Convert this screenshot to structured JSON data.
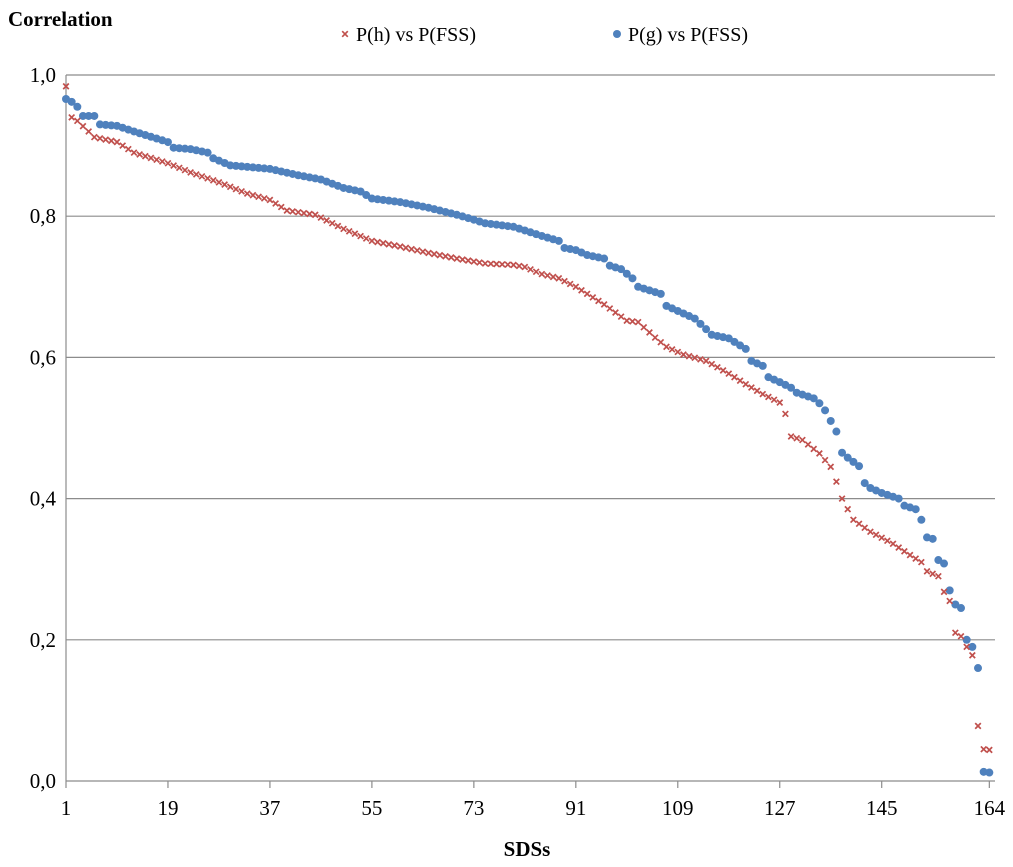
{
  "chart_data": {
    "type": "scatter",
    "ylabel": "Correlation",
    "xlabel": "SDSs",
    "xlim": [
      1,
      165
    ],
    "ylim": [
      0,
      1
    ],
    "x_ticks": [
      1,
      19,
      37,
      55,
      73,
      91,
      109,
      127,
      145,
      164
    ],
    "x_tick_labels": [
      "1",
      "19",
      "37",
      "55",
      "73",
      "91",
      "109",
      "127",
      "145",
      "164"
    ],
    "y_ticks": [
      0,
      0.2,
      0.4,
      0.6,
      0.8,
      1.0
    ],
    "y_tick_labels": [
      "0,0",
      "0,2",
      "0,4",
      "0,6",
      "0,8",
      "1,0"
    ],
    "grid": "horizontal",
    "legend_position": "top-center",
    "series": [
      {
        "name": "P(h) vs P(FSS)",
        "marker": "x",
        "color": "#c0504d",
        "anchors": [
          [
            1,
            0.984
          ],
          [
            2,
            0.94
          ],
          [
            3,
            0.935
          ],
          [
            5,
            0.92
          ],
          [
            6,
            0.912
          ],
          [
            10,
            0.905
          ],
          [
            13,
            0.89
          ],
          [
            19,
            0.875
          ],
          [
            23,
            0.862
          ],
          [
            28,
            0.848
          ],
          [
            33,
            0.832
          ],
          [
            37,
            0.823
          ],
          [
            40,
            0.808
          ],
          [
            45,
            0.802
          ],
          [
            50,
            0.782
          ],
          [
            55,
            0.765
          ],
          [
            60,
            0.757
          ],
          [
            65,
            0.748
          ],
          [
            70,
            0.74
          ],
          [
            75,
            0.733
          ],
          [
            80,
            0.731
          ],
          [
            82,
            0.728
          ],
          [
            85,
            0.718
          ],
          [
            88,
            0.712
          ],
          [
            91,
            0.7
          ],
          [
            93,
            0.69
          ],
          [
            96,
            0.675
          ],
          [
            100,
            0.652
          ],
          [
            102,
            0.65
          ],
          [
            105,
            0.628
          ],
          [
            107,
            0.615
          ],
          [
            110,
            0.604
          ],
          [
            114,
            0.595
          ],
          [
            118,
            0.577
          ],
          [
            121,
            0.562
          ],
          [
            124,
            0.548
          ],
          [
            127,
            0.536
          ],
          [
            128,
            0.52
          ],
          [
            129,
            0.488
          ],
          [
            131,
            0.483
          ],
          [
            134,
            0.464
          ],
          [
            136,
            0.445
          ],
          [
            137,
            0.424
          ],
          [
            138,
            0.4
          ],
          [
            139,
            0.385
          ],
          [
            140,
            0.37
          ],
          [
            143,
            0.353
          ],
          [
            147,
            0.336
          ],
          [
            150,
            0.32
          ],
          [
            152,
            0.31
          ],
          [
            153,
            0.297
          ],
          [
            155,
            0.29
          ],
          [
            156,
            0.268
          ],
          [
            157,
            0.255
          ],
          [
            158,
            0.21
          ],
          [
            159,
            0.205
          ],
          [
            160,
            0.19
          ],
          [
            161,
            0.178
          ],
          [
            162,
            0.078
          ],
          [
            163,
            0.045
          ],
          [
            164,
            0.044
          ]
        ]
      },
      {
        "name": "P(g) vs P(FSS)",
        "marker": "circle",
        "color": "#4f81bd",
        "anchors": [
          [
            1,
            0.966
          ],
          [
            2,
            0.962
          ],
          [
            3,
            0.955
          ],
          [
            4,
            0.942
          ],
          [
            6,
            0.942
          ],
          [
            7,
            0.93
          ],
          [
            10,
            0.928
          ],
          [
            13,
            0.92
          ],
          [
            19,
            0.905
          ],
          [
            20,
            0.897
          ],
          [
            23,
            0.895
          ],
          [
            26,
            0.89
          ],
          [
            27,
            0.882
          ],
          [
            30,
            0.872
          ],
          [
            37,
            0.867
          ],
          [
            42,
            0.858
          ],
          [
            46,
            0.852
          ],
          [
            50,
            0.84
          ],
          [
            53,
            0.835
          ],
          [
            55,
            0.825
          ],
          [
            60,
            0.82
          ],
          [
            65,
            0.812
          ],
          [
            70,
            0.802
          ],
          [
            73,
            0.795
          ],
          [
            75,
            0.79
          ],
          [
            80,
            0.785
          ],
          [
            85,
            0.772
          ],
          [
            88,
            0.765
          ],
          [
            89,
            0.755
          ],
          [
            91,
            0.752
          ],
          [
            93,
            0.745
          ],
          [
            96,
            0.74
          ],
          [
            97,
            0.73
          ],
          [
            99,
            0.725
          ],
          [
            101,
            0.712
          ],
          [
            102,
            0.7
          ],
          [
            106,
            0.69
          ],
          [
            107,
            0.673
          ],
          [
            112,
            0.655
          ],
          [
            114,
            0.64
          ],
          [
            115,
            0.632
          ],
          [
            118,
            0.627
          ],
          [
            121,
            0.612
          ],
          [
            122,
            0.595
          ],
          [
            124,
            0.588
          ],
          [
            125,
            0.572
          ],
          [
            127,
            0.565
          ],
          [
            129,
            0.557
          ],
          [
            130,
            0.55
          ],
          [
            133,
            0.542
          ],
          [
            134,
            0.535
          ],
          [
            135,
            0.525
          ],
          [
            136,
            0.51
          ],
          [
            137,
            0.495
          ],
          [
            138,
            0.465
          ],
          [
            139,
            0.458
          ],
          [
            141,
            0.446
          ],
          [
            142,
            0.422
          ],
          [
            143,
            0.415
          ],
          [
            145,
            0.408
          ],
          [
            148,
            0.4
          ],
          [
            149,
            0.39
          ],
          [
            151,
            0.385
          ],
          [
            152,
            0.37
          ],
          [
            153,
            0.345
          ],
          [
            154,
            0.343
          ],
          [
            155,
            0.313
          ],
          [
            156,
            0.308
          ],
          [
            157,
            0.27
          ],
          [
            158,
            0.25
          ],
          [
            159,
            0.245
          ],
          [
            160,
            0.2
          ],
          [
            161,
            0.19
          ],
          [
            162,
            0.16
          ],
          [
            163,
            0.013
          ],
          [
            164,
            0.012
          ]
        ]
      }
    ]
  }
}
